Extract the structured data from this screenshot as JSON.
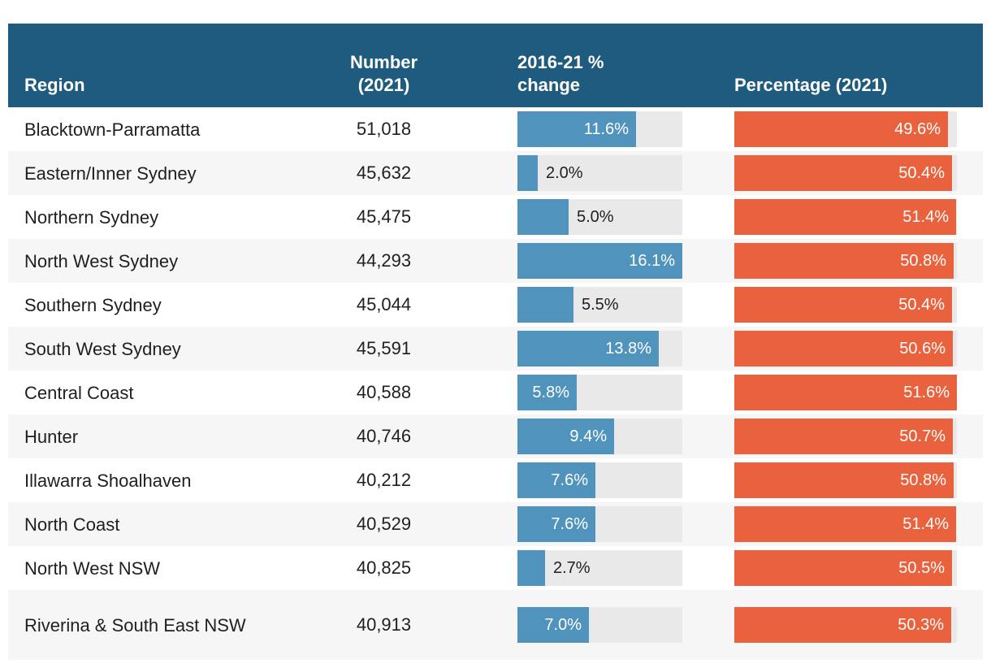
{
  "header": {
    "region": "Region",
    "number": "Number\n(2021)",
    "change": "2016-21 %\nchange",
    "percentage": "Percentage (2021)"
  },
  "colors": {
    "header_bg": "#1e5b7e",
    "change_bar": "#5094be",
    "percentage_bar": "#e9623d",
    "bar_track": "#e9e9e9",
    "row_alt_bg": "#f6f6f6"
  },
  "chart_data": {
    "type": "table",
    "title": "",
    "columns": [
      "Region",
      "Number (2021)",
      "2016-21 % change",
      "Percentage (2021)"
    ],
    "change_axis_max": 16.1,
    "percentage_axis_max": 51.6,
    "legend_position": "none",
    "rows": [
      {
        "region": "Blacktown-Parramatta",
        "number_2021": "51,018",
        "change_pct": 11.6,
        "change_label": "11.6%",
        "change_label_inside": true,
        "percentage_2021": 49.6,
        "percentage_label": "49.6%"
      },
      {
        "region": "Eastern/Inner Sydney",
        "number_2021": "45,632",
        "change_pct": 2.0,
        "change_label": "2.0%",
        "change_label_inside": false,
        "percentage_2021": 50.4,
        "percentage_label": "50.4%"
      },
      {
        "region": "Northern Sydney",
        "number_2021": "45,475",
        "change_pct": 5.0,
        "change_label": "5.0%",
        "change_label_inside": false,
        "percentage_2021": 51.4,
        "percentage_label": "51.4%"
      },
      {
        "region": "North West Sydney",
        "number_2021": "44,293",
        "change_pct": 16.1,
        "change_label": "16.1%",
        "change_label_inside": true,
        "percentage_2021": 50.8,
        "percentage_label": "50.8%"
      },
      {
        "region": "Southern Sydney",
        "number_2021": "45,044",
        "change_pct": 5.5,
        "change_label": "5.5%",
        "change_label_inside": false,
        "percentage_2021": 50.4,
        "percentage_label": "50.4%"
      },
      {
        "region": "South West Sydney",
        "number_2021": "45,591",
        "change_pct": 13.8,
        "change_label": "13.8%",
        "change_label_inside": true,
        "percentage_2021": 50.6,
        "percentage_label": "50.6%"
      },
      {
        "region": "Central Coast",
        "number_2021": "40,588",
        "change_pct": 5.8,
        "change_label": "5.8%",
        "change_label_inside": true,
        "percentage_2021": 51.6,
        "percentage_label": "51.6%"
      },
      {
        "region": "Hunter",
        "number_2021": "40,746",
        "change_pct": 9.4,
        "change_label": "9.4%",
        "change_label_inside": true,
        "percentage_2021": 50.7,
        "percentage_label": "50.7%"
      },
      {
        "region": "Illawarra Shoalhaven",
        "number_2021": "40,212",
        "change_pct": 7.6,
        "change_label": "7.6%",
        "change_label_inside": true,
        "percentage_2021": 50.8,
        "percentage_label": "50.8%"
      },
      {
        "region": "North Coast",
        "number_2021": "40,529",
        "change_pct": 7.6,
        "change_label": "7.6%",
        "change_label_inside": true,
        "percentage_2021": 51.4,
        "percentage_label": "51.4%"
      },
      {
        "region": "North West NSW",
        "number_2021": "40,825",
        "change_pct": 2.7,
        "change_label": "2.7%",
        "change_label_inside": false,
        "percentage_2021": 50.5,
        "percentage_label": "50.5%"
      },
      {
        "region": "Riverina & South East NSW",
        "number_2021": "40,913",
        "change_pct": 7.0,
        "change_label": "7.0%",
        "change_label_inside": true,
        "percentage_2021": 50.3,
        "percentage_label": "50.3%"
      }
    ]
  }
}
